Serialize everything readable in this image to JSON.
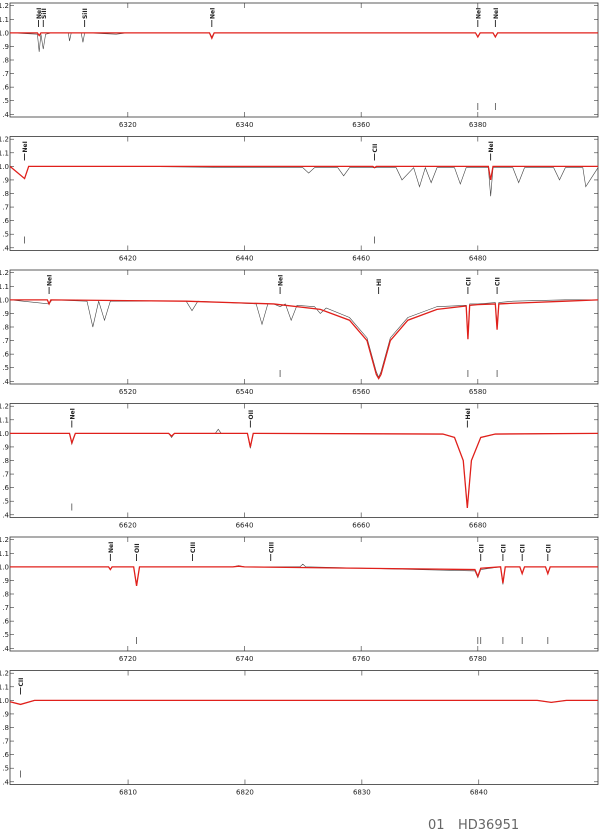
{
  "chart_data": [
    {
      "type": "line",
      "xlim": [
        6299.8,
        6400.6
      ],
      "ylim": [
        0.38,
        1.22
      ],
      "xticks": [
        6320,
        6340,
        6360,
        6380
      ],
      "yticks": [
        {
          "value": 0.4,
          "label": ".4"
        },
        {
          "value": 0.5,
          "label": ".5"
        },
        {
          "value": 0.6,
          "label": ".6"
        },
        {
          "value": 0.7,
          "label": ".7"
        },
        {
          "value": 0.8,
          "label": ".8"
        },
        {
          "value": 0.9,
          "label": ".9"
        },
        {
          "value": 1.0,
          "label": "1.0"
        },
        {
          "value": 1.1,
          "label": "1.1"
        },
        {
          "value": 1.2,
          "label": "1.2"
        }
      ],
      "series": [
        {
          "color": "#444444",
          "x": [
            6299.8,
            6304.5,
            6304.8,
            6305.1,
            6305.5,
            6305.9,
            6307,
            6309.8,
            6310,
            6310.3,
            6312,
            6312.3,
            6312.6,
            6318,
            6320,
            6334,
            6334.4,
            6334.8,
            6350,
            6379.6,
            6380,
            6380.4,
            6382.6,
            6383,
            6383.4,
            6400.6
          ],
          "values": [
            1.0,
            0.99,
            0.86,
            0.99,
            0.88,
            0.99,
            1.0,
            1.0,
            0.94,
            1.0,
            1.0,
            0.93,
            1.0,
            0.99,
            1.0,
            1.0,
            0.97,
            1.0,
            1.0,
            1.0,
            0.97,
            1.0,
            1.0,
            0.97,
            1.0,
            1.0
          ]
        },
        {
          "color": "#e0201b",
          "x": [
            6299.8,
            6304.5,
            6304.8,
            6305.1,
            6334,
            6334.4,
            6334.8,
            6379.6,
            6380,
            6380.4,
            6382.6,
            6383,
            6383.4,
            6400.6
          ],
          "values": [
            1.0,
            1.0,
            0.98,
            1.0,
            1.0,
            0.96,
            1.0,
            1.0,
            0.97,
            1.0,
            1.0,
            0.97,
            1.0,
            1.0
          ]
        }
      ],
      "lines": [
        {
          "label": "NeI",
          "x": 6304.7
        },
        {
          "label": "SiII",
          "x": 6305.5
        },
        {
          "label": "SiII",
          "x": 6312.6
        },
        {
          "label": "NeI",
          "x": 6334.4
        },
        {
          "label": "NeI",
          "x": 6380.0
        },
        {
          "label": "NeI",
          "x": 6383.0
        }
      ],
      "markers": [
        6380.0,
        6383.0
      ]
    },
    {
      "type": "line",
      "xlim": [
        6399.8,
        6500.6
      ],
      "ylim": [
        0.38,
        1.22
      ],
      "xticks": [
        6420,
        6440,
        6460,
        6480
      ],
      "yticks": [
        {
          "value": 0.4,
          "label": ".4"
        },
        {
          "value": 0.5,
          "label": ".5"
        },
        {
          "value": 0.6,
          "label": ".6"
        },
        {
          "value": 0.7,
          "label": ".7"
        },
        {
          "value": 0.8,
          "label": ".8"
        },
        {
          "value": 0.9,
          "label": ".9"
        },
        {
          "value": 1.0,
          "label": "1.0"
        },
        {
          "value": 1.1,
          "label": "1.1"
        },
        {
          "value": 1.2,
          "label": "1.2"
        }
      ],
      "series": [
        {
          "color": "#444444",
          "x": [
            6399.8,
            6402.3,
            6403,
            6420,
            6440,
            6450,
            6451,
            6452,
            6456,
            6457,
            6458,
            6466,
            6467,
            6469,
            6470,
            6471,
            6472,
            6473,
            6476,
            6477,
            6478,
            6481.8,
            6482.2,
            6482.6,
            6486,
            6487,
            6488,
            6493,
            6494,
            6495,
            6498,
            6498.5,
            6500.6
          ],
          "values": [
            1.0,
            0.91,
            1.0,
            1.0,
            0.99,
            0.99,
            0.95,
            0.99,
            0.99,
            0.93,
            0.99,
            0.99,
            0.9,
            0.99,
            0.85,
            0.99,
            0.88,
            0.99,
            0.99,
            0.87,
            0.99,
            0.99,
            0.78,
            0.99,
            0.99,
            0.88,
            0.99,
            0.99,
            0.9,
            0.99,
            0.99,
            0.85,
            0.99
          ]
        },
        {
          "color": "#e0201b",
          "x": [
            6399.8,
            6402.3,
            6403,
            6462,
            6462.3,
            6462.6,
            6481.8,
            6482.2,
            6482.6,
            6500.6
          ],
          "values": [
            1.0,
            0.91,
            1.0,
            1.0,
            0.99,
            1.0,
            1.0,
            0.9,
            1.0,
            1.0
          ]
        }
      ],
      "lines": [
        {
          "label": "NeI",
          "x": 6402.3
        },
        {
          "label": "CII",
          "x": 6462.3
        },
        {
          "label": "NeI",
          "x": 6482.2
        }
      ],
      "markers": [
        6402.3,
        6462.3
      ]
    },
    {
      "type": "line",
      "xlim": [
        6499.8,
        6600.6
      ],
      "ylim": [
        0.38,
        1.22
      ],
      "xticks": [
        6520,
        6540,
        6560,
        6580
      ],
      "yticks": [
        {
          "value": 0.4,
          "label": ".4"
        },
        {
          "value": 0.5,
          "label": ".5"
        },
        {
          "value": 0.6,
          "label": ".6"
        },
        {
          "value": 0.7,
          "label": ".7"
        },
        {
          "value": 0.8,
          "label": ".8"
        },
        {
          "value": 0.9,
          "label": ".9"
        },
        {
          "value": 1.0,
          "label": "1.0"
        },
        {
          "value": 1.1,
          "label": "1.1"
        },
        {
          "value": 1.2,
          "label": "1.2"
        }
      ],
      "series": [
        {
          "color": "#444444",
          "x": [
            6499.8,
            6506.5,
            6507,
            6513,
            6514,
            6515,
            6516,
            6517,
            6530,
            6531,
            6532,
            6542,
            6543,
            6544,
            6545,
            6546.1,
            6547,
            6548,
            6549,
            6552,
            6553,
            6554,
            6558,
            6561,
            6562.6,
            6563,
            6563.4,
            6565,
            6568,
            6573,
            6578,
            6578.3,
            6578.6,
            6580,
            6583,
            6583.3,
            6583.6,
            6586,
            6595,
            6600.6
          ],
          "values": [
            1.0,
            0.97,
            1.0,
            0.99,
            0.8,
            0.99,
            0.85,
            0.99,
            0.99,
            0.92,
            0.99,
            0.97,
            0.82,
            0.97,
            0.97,
            0.95,
            0.97,
            0.85,
            0.96,
            0.95,
            0.9,
            0.94,
            0.87,
            0.72,
            0.47,
            0.43,
            0.47,
            0.72,
            0.87,
            0.95,
            0.96,
            0.74,
            0.97,
            0.97,
            0.98,
            0.81,
            0.98,
            0.99,
            1.0,
            1.0
          ]
        },
        {
          "color": "#e0201b",
          "x": [
            6499.8,
            6506.2,
            6506.5,
            6506.8,
            6530,
            6545,
            6553,
            6558,
            6561,
            6562.6,
            6563,
            6563.4,
            6565,
            6568,
            6573,
            6578,
            6578.3,
            6578.6,
            6580,
            6583,
            6583.3,
            6583.6,
            6586,
            6595,
            6600.6
          ],
          "values": [
            1.0,
            1.0,
            0.97,
            1.0,
            0.99,
            0.97,
            0.93,
            0.85,
            0.7,
            0.45,
            0.42,
            0.45,
            0.7,
            0.85,
            0.93,
            0.955,
            0.71,
            0.96,
            0.965,
            0.97,
            0.78,
            0.97,
            0.975,
            0.99,
            1.0
          ]
        }
      ],
      "lines": [
        {
          "label": "NeI",
          "x": 6506.5
        },
        {
          "label": "NeI",
          "x": 6546.1
        },
        {
          "label": "HI",
          "x": 6563.0
        },
        {
          "label": "CII",
          "x": 6578.3
        },
        {
          "label": "CII",
          "x": 6583.3
        }
      ],
      "markers": [
        6546.1,
        6578.3,
        6583.3
      ]
    },
    {
      "type": "line",
      "xlim": [
        6599.8,
        6700.6
      ],
      "ylim": [
        0.38,
        1.22
      ],
      "xticks": [
        6620,
        6640,
        6660,
        6680
      ],
      "yticks": [
        {
          "value": 0.4,
          "label": ".4"
        },
        {
          "value": 0.5,
          "label": ".5"
        },
        {
          "value": 0.6,
          "label": ".6"
        },
        {
          "value": 0.7,
          "label": ".7"
        },
        {
          "value": 0.8,
          "label": ".8"
        },
        {
          "value": 0.9,
          "label": ".9"
        },
        {
          "value": 1.0,
          "label": "1.0"
        },
        {
          "value": 1.1,
          "label": "1.1"
        },
        {
          "value": 1.2,
          "label": "1.2"
        }
      ],
      "series": [
        {
          "color": "#444444",
          "x": [
            6599.8,
            6610,
            6610.4,
            6611,
            6627,
            6627.5,
            6628,
            6635,
            6635.5,
            6636,
            6640.5,
            6641,
            6641.5,
            6674,
            6676,
            6677.5,
            6678.2,
            6678.9,
            6680.5,
            6683,
            6700.6
          ],
          "values": [
            1.0,
            1.0,
            0.92,
            1.0,
            1.0,
            0.97,
            1.0,
            1.0,
            1.03,
            1.0,
            1.0,
            0.89,
            1.0,
            0.995,
            0.97,
            0.8,
            0.46,
            0.8,
            0.97,
            0.995,
            1.0
          ]
        },
        {
          "color": "#e0201b",
          "x": [
            6599.8,
            6610,
            6610.4,
            6611,
            6627,
            6627.5,
            6628,
            6640.5,
            6641,
            6641.5,
            6674,
            6676,
            6677.5,
            6678.2,
            6678.9,
            6680.5,
            6683,
            6700.6
          ],
          "values": [
            1.0,
            1.0,
            0.93,
            1.0,
            1.0,
            0.98,
            1.0,
            1.0,
            0.9,
            1.0,
            0.995,
            0.97,
            0.8,
            0.45,
            0.8,
            0.97,
            0.995,
            1.0
          ]
        }
      ],
      "lines": [
        {
          "label": "NeI",
          "x": 6610.4
        },
        {
          "label": "OII",
          "x": 6641.0
        },
        {
          "label": "HeI",
          "x": 6678.2
        }
      ],
      "markers": [
        6610.4
      ]
    },
    {
      "type": "line",
      "xlim": [
        6699.8,
        6800.6
      ],
      "ylim": [
        0.38,
        1.22
      ],
      "xticks": [
        6720,
        6740,
        6760,
        6780
      ],
      "yticks": [
        {
          "value": 0.4,
          "label": ".4"
        },
        {
          "value": 0.5,
          "label": ".5"
        },
        {
          "value": 0.6,
          "label": ".6"
        },
        {
          "value": 0.7,
          "label": ".7"
        },
        {
          "value": 0.8,
          "label": ".8"
        },
        {
          "value": 0.9,
          "label": ".9"
        },
        {
          "value": 1.0,
          "label": "1.0"
        },
        {
          "value": 1.1,
          "label": "1.1"
        },
        {
          "value": 1.2,
          "label": "1.2"
        }
      ],
      "series": [
        {
          "color": "#444444",
          "x": [
            6699.8,
            6716.7,
            6717,
            6717.3,
            6721,
            6721.5,
            6722,
            6738,
            6739,
            6740,
            6749.5,
            6750,
            6750.5,
            6779.5,
            6780,
            6780.5,
            6783.9,
            6784.3,
            6784.7,
            6787.2,
            6787.6,
            6788,
            6791.6,
            6792,
            6792.4,
            6800.6
          ],
          "values": [
            1.0,
            1.0,
            0.98,
            1.0,
            1.0,
            0.87,
            1.0,
            1.0,
            1.01,
            1.0,
            1.0,
            1.02,
            1.0,
            0.97,
            0.92,
            0.98,
            1.0,
            0.87,
            1.0,
            1.0,
            0.95,
            1.0,
            1.0,
            0.95,
            1.0,
            1.0
          ]
        },
        {
          "color": "#e0201b",
          "x": [
            6699.8,
            6716.7,
            6717,
            6717.3,
            6721,
            6721.5,
            6722,
            6738,
            6739,
            6740,
            6779.5,
            6780,
            6780.5,
            6783.9,
            6784.3,
            6784.7,
            6787.2,
            6787.6,
            6788,
            6791.6,
            6792,
            6792.4,
            6800.6
          ],
          "values": [
            1.0,
            1.0,
            0.98,
            1.0,
            1.0,
            0.86,
            1.0,
            1.0,
            1.005,
            1.0,
            0.98,
            0.93,
            0.99,
            1.0,
            0.88,
            1.0,
            1.0,
            0.95,
            1.0,
            1.0,
            0.95,
            1.0,
            1.0
          ]
        }
      ],
      "lines": [
        {
          "label": "NeI",
          "x": 6717.0
        },
        {
          "label": "OII",
          "x": 6721.5
        },
        {
          "label": "CIII",
          "x": 6731.1
        },
        {
          "label": "CIII",
          "x": 6744.5
        },
        {
          "label": "CII",
          "x": 6780.5
        },
        {
          "label": "CII",
          "x": 6784.3
        },
        {
          "label": "CII",
          "x": 6787.6
        },
        {
          "label": "CII",
          "x": 6792.0
        }
      ],
      "markers": [
        6721.5,
        6780.0,
        6780.5,
        6784.3,
        6787.6,
        6792.0
      ]
    },
    {
      "type": "line",
      "xlim": [
        6799.9,
        6850.2
      ],
      "ylim": [
        0.38,
        1.22
      ],
      "xticks": [
        6810,
        6820,
        6830,
        6840
      ],
      "yticks": [
        {
          "value": 0.4,
          "label": ".4"
        },
        {
          "value": 0.5,
          "label": ".5"
        },
        {
          "value": 0.6,
          "label": ".6"
        },
        {
          "value": 0.7,
          "label": ".7"
        },
        {
          "value": 0.8,
          "label": ".8"
        },
        {
          "value": 0.9,
          "label": ".9"
        },
        {
          "value": 1.0,
          "label": "1.0"
        },
        {
          "value": 1.1,
          "label": "1.1"
        },
        {
          "value": 1.2,
          "label": "1.2"
        }
      ],
      "series": [
        {
          "color": "#444444",
          "x": [
            6799.9,
            6800.8,
            6802,
            6815,
            6830,
            6845,
            6846.2,
            6847.5,
            6850.2
          ],
          "values": [
            0.99,
            0.97,
            1.0,
            1.0,
            1.0,
            1.0,
            0.985,
            1.0,
            1.0
          ]
        },
        {
          "color": "#e0201b",
          "x": [
            6799.9,
            6800.8,
            6802,
            6815,
            6830,
            6845,
            6846.2,
            6847.5,
            6850.2
          ],
          "values": [
            0.99,
            0.97,
            1.0,
            1.0,
            1.0,
            1.0,
            0.985,
            1.0,
            1.0
          ]
        }
      ],
      "lines": [
        {
          "label": "CII",
          "x": 6800.8
        }
      ],
      "markers": [
        6800.8
      ]
    }
  ],
  "footer": {
    "index": "01",
    "star": "HD36951"
  }
}
